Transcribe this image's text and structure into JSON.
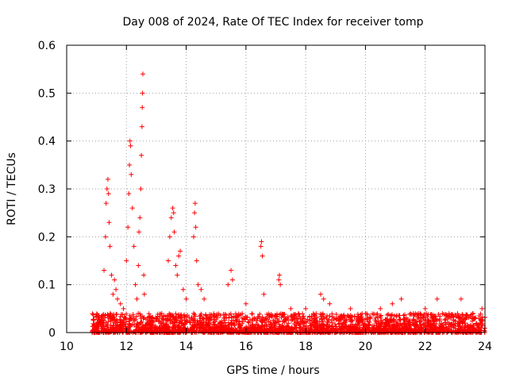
{
  "chart_data": {
    "type": "scatter",
    "title": "Day 008 of 2024, Rate Of TEC Index for receiver tomp",
    "xlabel": "GPS time / hours",
    "ylabel": "ROTI / TECUs",
    "xlim": [
      10,
      24
    ],
    "ylim": [
      0,
      0.6
    ],
    "xticks": [
      10,
      12,
      14,
      16,
      18,
      20,
      22,
      24
    ],
    "yticks": [
      0,
      0.1,
      0.2,
      0.3,
      0.4,
      0.5,
      0.6
    ],
    "ytick_labels": [
      "0",
      "0.1",
      "0.2",
      "0.3",
      "0.4",
      "0.5",
      "0.6"
    ],
    "grid": true,
    "marker": "+",
    "color": "#ff0000",
    "series": [
      {
        "name": "ROTI",
        "points": [
          [
            11.25,
            0.13
          ],
          [
            11.3,
            0.2
          ],
          [
            11.32,
            0.27
          ],
          [
            11.35,
            0.3
          ],
          [
            11.38,
            0.32
          ],
          [
            11.4,
            0.29
          ],
          [
            11.42,
            0.23
          ],
          [
            11.45,
            0.18
          ],
          [
            11.5,
            0.12
          ],
          [
            11.55,
            0.08
          ],
          [
            11.6,
            0.11
          ],
          [
            11.65,
            0.09
          ],
          [
            11.7,
            0.07
          ],
          [
            11.8,
            0.06
          ],
          [
            11.9,
            0.05
          ],
          [
            12.0,
            0.15
          ],
          [
            12.05,
            0.22
          ],
          [
            12.08,
            0.29
          ],
          [
            12.1,
            0.35
          ],
          [
            12.12,
            0.4
          ],
          [
            12.14,
            0.39
          ],
          [
            12.16,
            0.33
          ],
          [
            12.2,
            0.26
          ],
          [
            12.25,
            0.18
          ],
          [
            12.3,
            0.1
          ],
          [
            12.35,
            0.07
          ],
          [
            12.4,
            0.14
          ],
          [
            12.42,
            0.21
          ],
          [
            12.45,
            0.24
          ],
          [
            12.48,
            0.3
          ],
          [
            12.5,
            0.37
          ],
          [
            12.52,
            0.43
          ],
          [
            12.53,
            0.47
          ],
          [
            12.54,
            0.5
          ],
          [
            12.55,
            0.54
          ],
          [
            12.58,
            0.12
          ],
          [
            12.6,
            0.08
          ],
          [
            13.4,
            0.15
          ],
          [
            13.45,
            0.2
          ],
          [
            13.5,
            0.24
          ],
          [
            13.55,
            0.26
          ],
          [
            13.58,
            0.25
          ],
          [
            13.6,
            0.21
          ],
          [
            13.65,
            0.14
          ],
          [
            13.7,
            0.12
          ],
          [
            13.75,
            0.16
          ],
          [
            13.8,
            0.17
          ],
          [
            13.9,
            0.09
          ],
          [
            14.0,
            0.07
          ],
          [
            14.25,
            0.2
          ],
          [
            14.28,
            0.25
          ],
          [
            14.3,
            0.27
          ],
          [
            14.32,
            0.22
          ],
          [
            14.35,
            0.15
          ],
          [
            14.4,
            0.1
          ],
          [
            14.5,
            0.09
          ],
          [
            14.6,
            0.07
          ],
          [
            15.4,
            0.1
          ],
          [
            15.5,
            0.13
          ],
          [
            15.55,
            0.11
          ],
          [
            16.0,
            0.06
          ],
          [
            16.5,
            0.18
          ],
          [
            16.52,
            0.19
          ],
          [
            16.55,
            0.16
          ],
          [
            16.6,
            0.08
          ],
          [
            17.1,
            0.11
          ],
          [
            17.12,
            0.12
          ],
          [
            17.15,
            0.1
          ],
          [
            17.5,
            0.05
          ],
          [
            18.0,
            0.05
          ],
          [
            18.5,
            0.08
          ],
          [
            18.6,
            0.07
          ],
          [
            18.8,
            0.06
          ],
          [
            19.5,
            0.05
          ],
          [
            20.0,
            0.04
          ],
          [
            20.5,
            0.05
          ],
          [
            20.9,
            0.06
          ],
          [
            21.2,
            0.07
          ],
          [
            21.6,
            0.04
          ],
          [
            22.0,
            0.05
          ],
          [
            22.4,
            0.07
          ],
          [
            22.8,
            0.04
          ],
          [
            23.2,
            0.07
          ],
          [
            23.6,
            0.04
          ],
          [
            23.9,
            0.05
          ]
        ],
        "baseline": {
          "x_range": [
            10.85,
            24.0
          ],
          "y_range": [
            0.0,
            0.04
          ],
          "count": 2600
        }
      }
    ]
  }
}
